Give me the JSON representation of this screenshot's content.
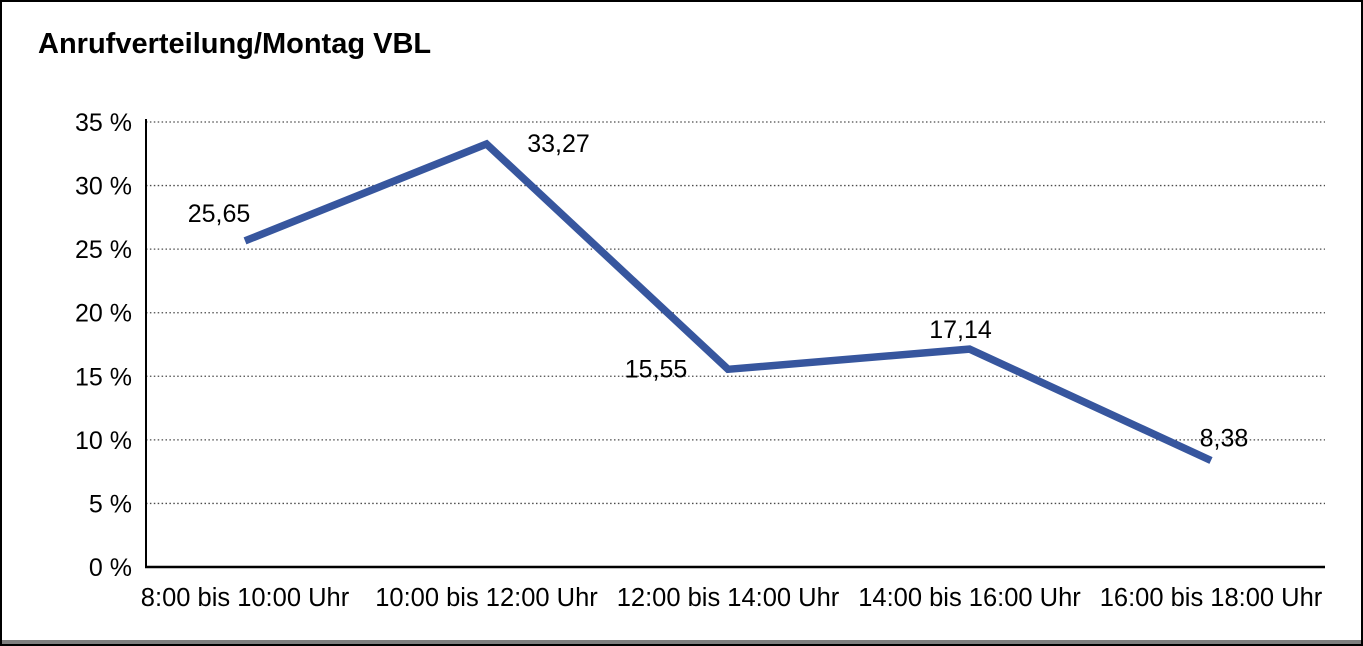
{
  "title": "Anrufverteilung/Montag VBL",
  "chart_data": {
    "type": "line",
    "title": "Anrufverteilung/Montag VBL",
    "categories": [
      "8:00 bis 10:00 Uhr",
      "10:00 bis 12:00 Uhr",
      "12:00 bis 14:00 Uhr",
      "14:00 bis 16:00 Uhr",
      "16:00 bis 18:00 Uhr"
    ],
    "values": [
      25.65,
      33.27,
      15.55,
      17.14,
      8.38
    ],
    "point_labels": [
      "25,65",
      "33,27",
      "15,55",
      "17,14",
      "8,38"
    ],
    "xlabel": "",
    "ylabel": "",
    "ylim": [
      0,
      35
    ],
    "y_tick_values": [
      0,
      5,
      10,
      15,
      20,
      25,
      30,
      35
    ],
    "y_tick_labels": [
      "0 %",
      "5 %",
      "10 %",
      "15 %",
      "20 %",
      "25 %",
      "30 %",
      "35 %"
    ],
    "grid": "horizontal-dotted",
    "legend": "none"
  },
  "colors": {
    "line": "#37569E",
    "gridline": "#4a4a4a",
    "axis": "#000000",
    "text": "#000000",
    "background": "#ffffff",
    "outer_border": "#000000",
    "bottom_edge": "#7f7f7f"
  }
}
